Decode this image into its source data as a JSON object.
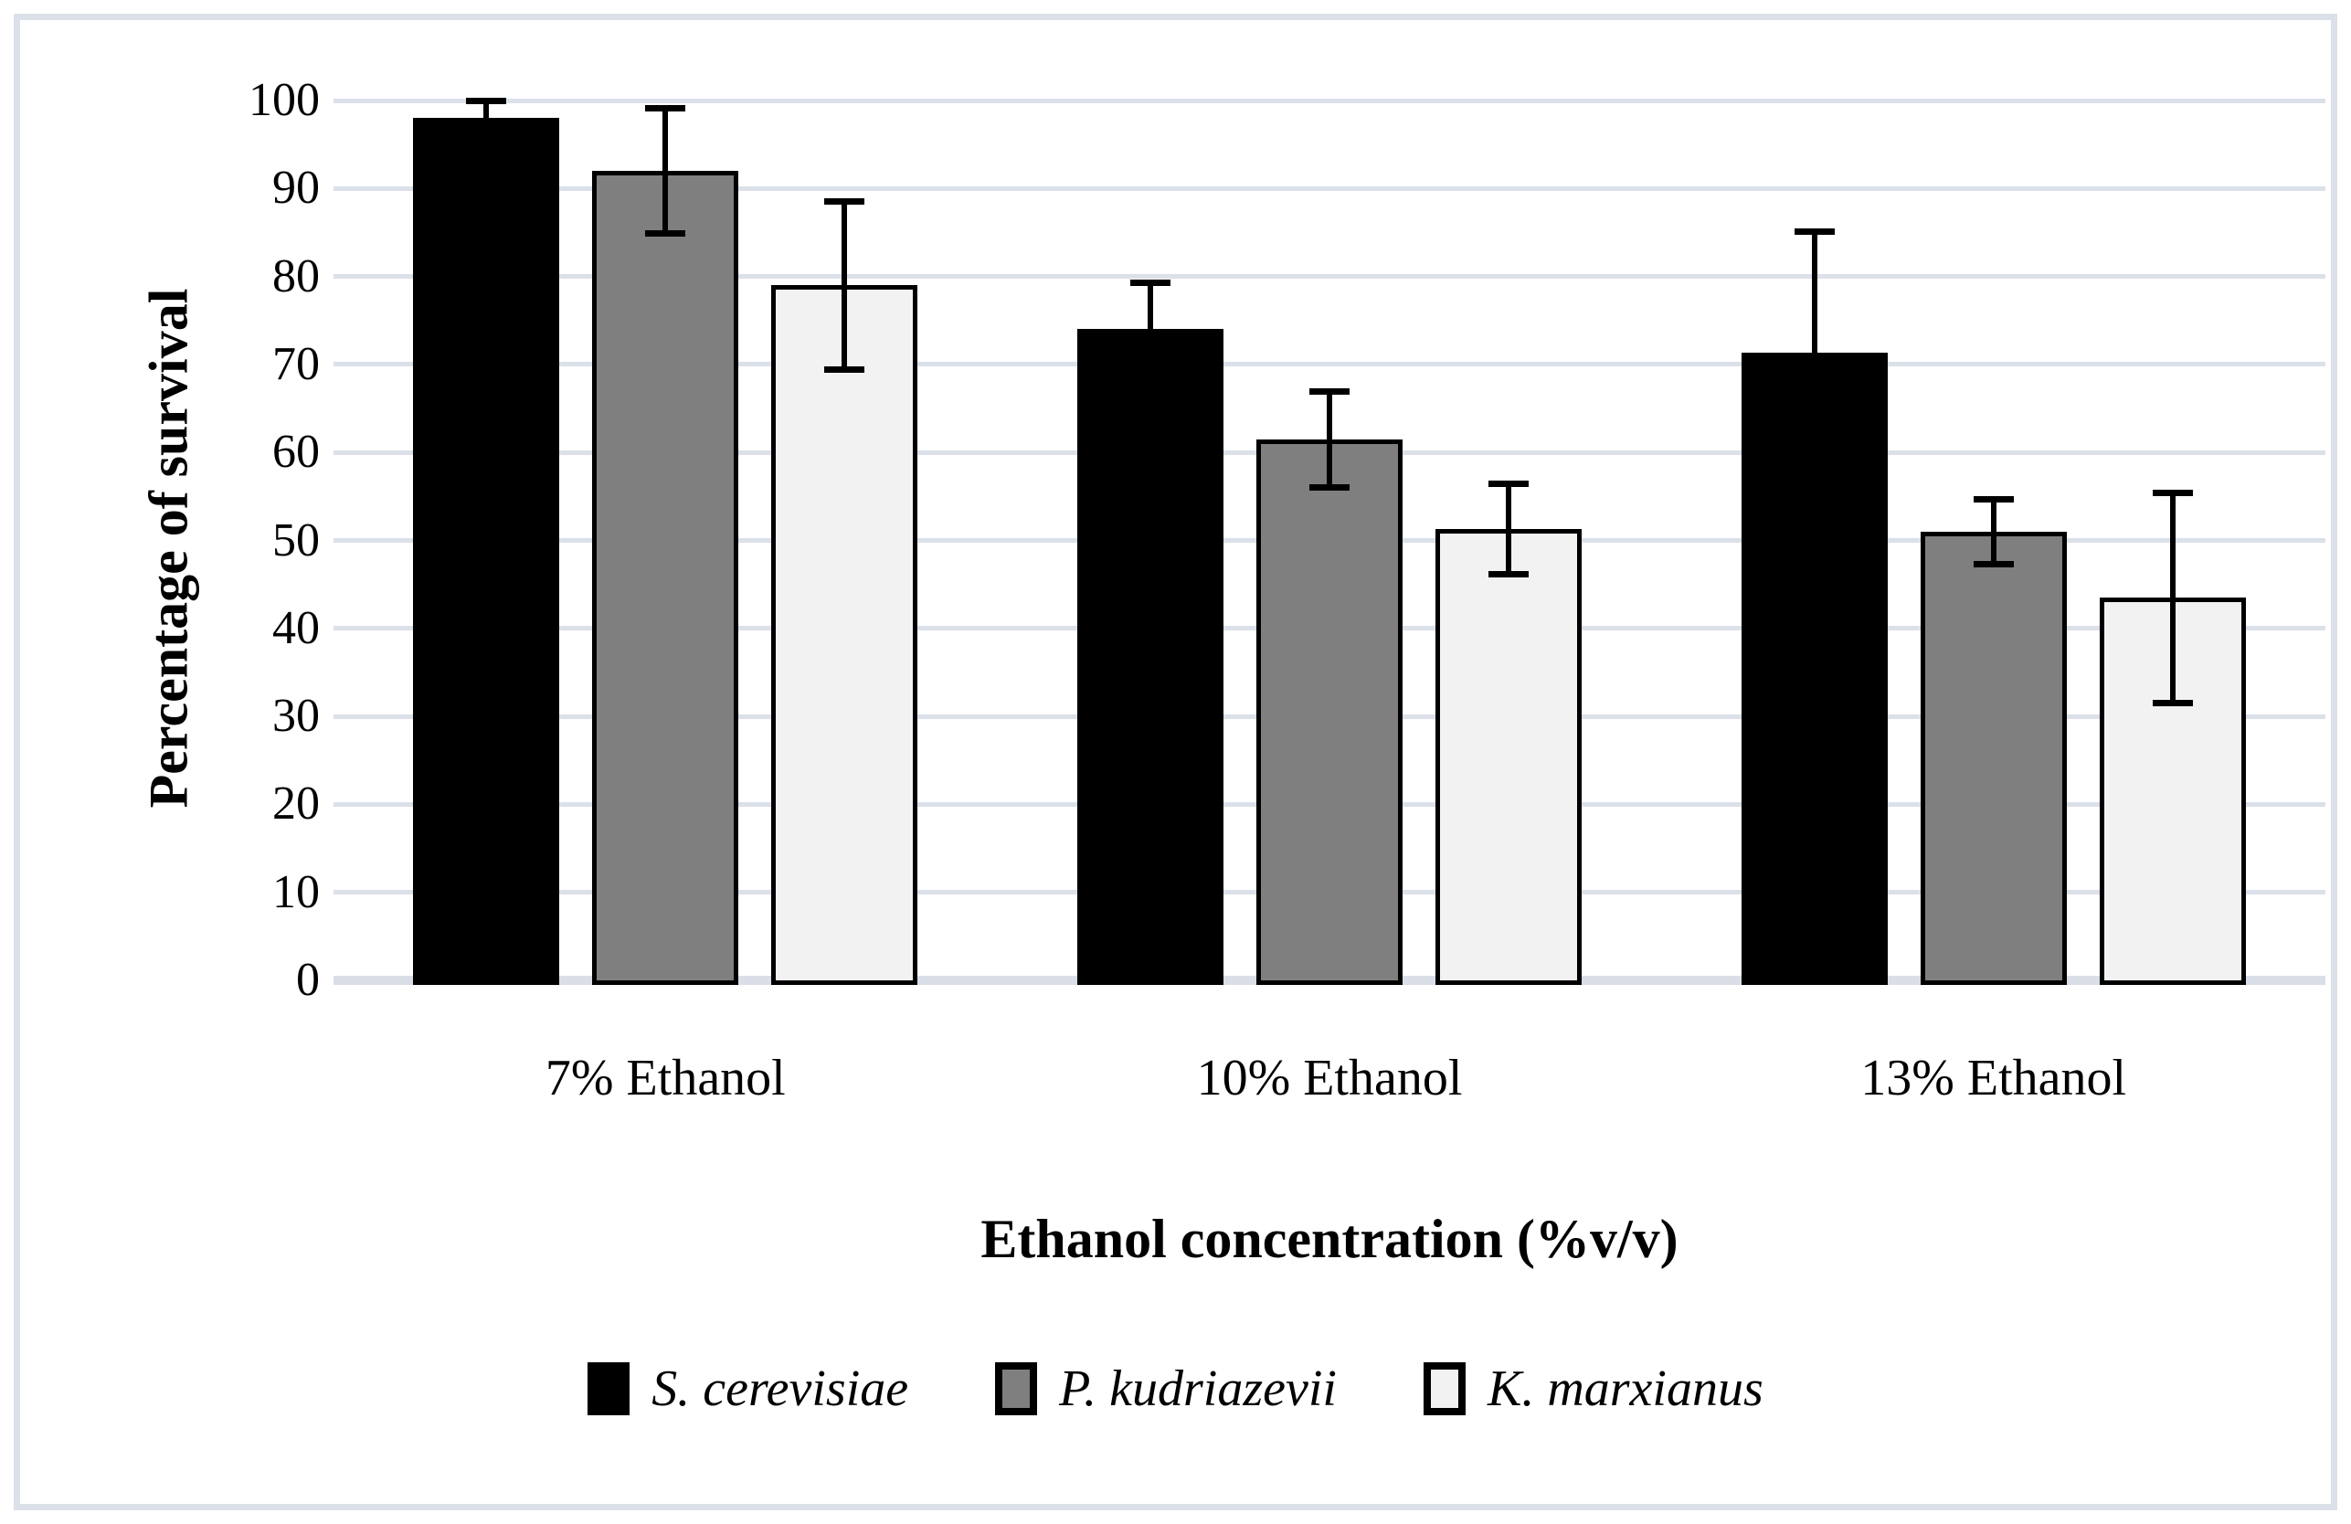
{
  "figure": {
    "background": "#FFFFFF",
    "border_color": "#DBE0E9"
  },
  "chart_data": {
    "type": "bar",
    "title": "",
    "xlabel": "Ethanol concentration (%v/v)",
    "ylabel": "Percentage of survival",
    "categories": [
      "7% Ethanol",
      "10% Ethanol",
      "13% Ethanol"
    ],
    "series": [
      {
        "name": "S. cerevisiae",
        "color": "#000000",
        "values": [
          98,
          74,
          71.3
        ],
        "error_bars": [
          2,
          5.3,
          13.8
        ]
      },
      {
        "name": "P. kudriazevii",
        "color": "#7F7F7F",
        "values": [
          92,
          61.5,
          51
        ],
        "error_bars": [
          7.2,
          5.5,
          3.7
        ]
      },
      {
        "name": "K. marxianus",
        "color": "#F2F2F2",
        "values": [
          79,
          51.3,
          43.5
        ],
        "error_bars": [
          9.6,
          5.2,
          12
        ]
      }
    ],
    "ylim": [
      0,
      100
    ],
    "yticks": [
      100,
      90,
      80,
      70,
      60,
      50,
      40,
      30,
      20,
      10,
      0
    ],
    "grid": true,
    "gridline_color": "#DBE0E9",
    "axis_line_color": "#D9DEE7",
    "bar_outline_color": "#000000",
    "error_bar_color": "#000000",
    "legend_position": "bottom"
  }
}
